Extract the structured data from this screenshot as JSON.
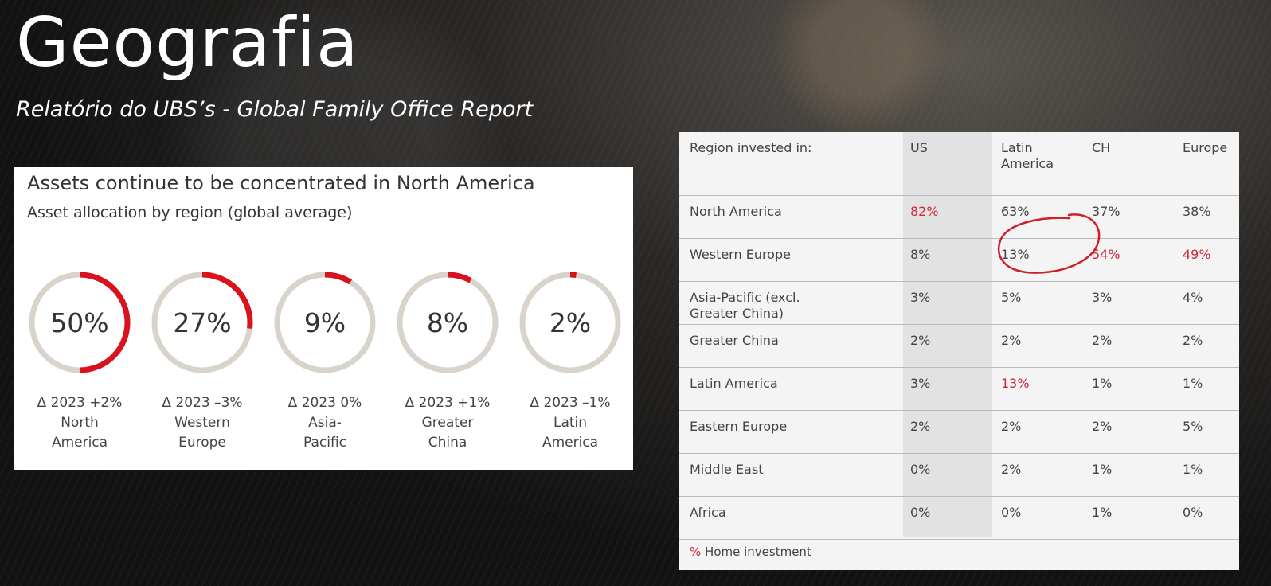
{
  "header": {
    "title": "Geografia",
    "subtitle": "Relatório do UBS’s - Global Family Office Report"
  },
  "colors": {
    "accent": "#d9131d",
    "track": "#d8d4cc",
    "home_investment": "#d0263a"
  },
  "chart_data": [
    {
      "type": "pie",
      "title": "Assets continue to be concentrated in North America",
      "subtitle": "Asset allocation by region (global average)",
      "items": [
        {
          "label_1": "Δ 2023 +2%",
          "label_2": "North",
          "label_3": "America",
          "value": 50,
          "display": "50%"
        },
        {
          "label_1": "Δ 2023 –3%",
          "label_2": "Western",
          "label_3": "Europe",
          "value": 27,
          "display": "27%"
        },
        {
          "label_1": "Δ 2023 0%",
          "label_2": "Asia-",
          "label_3": "Pacific",
          "value": 9,
          "display": "9%"
        },
        {
          "label_1": "Δ 2023 +1%",
          "label_2": "Greater",
          "label_3": "China",
          "value": 8,
          "display": "8%"
        },
        {
          "label_1": "Δ 2023 –1%",
          "label_2": "Latin",
          "label_3": "America",
          "value": 2,
          "display": "2%"
        }
      ]
    },
    {
      "type": "table",
      "columns": [
        "Region invested in:",
        "US",
        "Latin America",
        "CH",
        "Europe"
      ],
      "rows": [
        {
          "region": "North America",
          "cells": [
            "82%",
            "63%",
            "37%",
            "38%"
          ],
          "home": [
            true,
            false,
            false,
            false
          ]
        },
        {
          "region": "Western Europe",
          "cells": [
            "8%",
            "13%",
            "54%",
            "49%"
          ],
          "home": [
            false,
            false,
            true,
            true
          ]
        },
        {
          "region": "Asia-Pacific (excl. Greater China)",
          "cells": [
            "3%",
            "5%",
            "3%",
            "4%"
          ],
          "home": [
            false,
            false,
            false,
            false
          ]
        },
        {
          "region": "Greater China",
          "cells": [
            "2%",
            "2%",
            "2%",
            "2%"
          ],
          "home": [
            false,
            false,
            false,
            false
          ]
        },
        {
          "region": "Latin America",
          "cells": [
            "3%",
            "13%",
            "1%",
            "1%"
          ],
          "home": [
            false,
            true,
            false,
            false
          ]
        },
        {
          "region": "Eastern Europe",
          "cells": [
            "2%",
            "2%",
            "2%",
            "5%"
          ],
          "home": [
            false,
            false,
            false,
            false
          ]
        },
        {
          "region": "Middle East",
          "cells": [
            "0%",
            "2%",
            "1%",
            "1%"
          ],
          "home": [
            false,
            false,
            false,
            false
          ]
        },
        {
          "region": "Africa",
          "cells": [
            "0%",
            "0%",
            "1%",
            "0%"
          ],
          "home": [
            false,
            false,
            false,
            false
          ]
        }
      ],
      "legend_symbol": "%",
      "legend_text": "Home investment"
    }
  ]
}
